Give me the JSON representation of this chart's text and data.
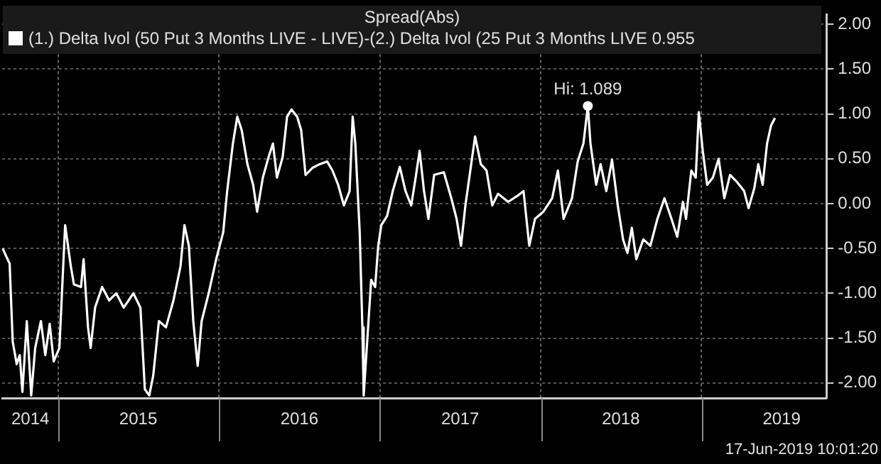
{
  "chart_data": {
    "type": "line",
    "title": "Spread(Abs)",
    "x": [
      "2014-08-28",
      "2014-09-13",
      "2014-09-20",
      "2014-09-29",
      "2014-10-06",
      "2014-10-12",
      "2014-10-22",
      "2014-11-01",
      "2014-11-10",
      "2014-11-23",
      "2014-12-03",
      "2014-12-13",
      "2014-12-22",
      "2015-01-04",
      "2015-01-17",
      "2015-01-30",
      "2015-02-06",
      "2015-02-22",
      "2015-02-28",
      "2015-03-10",
      "2015-03-16",
      "2015-03-26",
      "2015-04-11",
      "2015-04-27",
      "2015-05-13",
      "2015-05-30",
      "2015-06-21",
      "2015-07-07",
      "2015-07-17",
      "2015-07-27",
      "2015-08-05",
      "2015-08-18",
      "2015-09-03",
      "2015-09-20",
      "2015-10-06",
      "2015-10-15",
      "2015-10-25",
      "2015-11-04",
      "2015-11-14",
      "2015-11-23",
      "2015-12-09",
      "2015-12-26",
      "2016-01-11",
      "2016-01-20",
      "2016-02-02",
      "2016-02-12",
      "2016-02-22",
      "2016-03-06",
      "2016-03-19",
      "2016-03-28",
      "2016-04-10",
      "2016-04-23",
      "2016-05-03",
      "2016-05-12",
      "2016-05-25",
      "2016-06-04",
      "2016-06-14",
      "2016-06-27",
      "2016-07-06",
      "2016-07-16",
      "2016-08-01",
      "2016-08-17",
      "2016-09-03",
      "2016-09-15",
      "2016-09-28",
      "2016-10-11",
      "2016-10-24",
      "2016-10-31",
      "2016-11-06",
      "2016-11-16",
      "2016-11-22",
      "2016-11-25",
      "2016-12-02",
      "2016-12-12",
      "2016-12-21",
      "2016-12-28",
      "2017-01-04",
      "2017-01-17",
      "2017-01-30",
      "2017-02-15",
      "2017-02-28",
      "2017-03-13",
      "2017-03-23",
      "2017-04-01",
      "2017-04-11",
      "2017-04-21",
      "2017-05-04",
      "2017-05-26",
      "2017-06-12",
      "2017-06-24",
      "2017-07-04",
      "2017-07-14",
      "2017-08-05",
      "2017-08-18",
      "2017-08-31",
      "2017-09-13",
      "2017-09-26",
      "2017-10-19",
      "2017-11-10",
      "2017-11-23",
      "2017-12-06",
      "2017-12-19",
      "2018-01-07",
      "2018-01-27",
      "2018-02-09",
      "2018-02-22",
      "2018-03-13",
      "2018-03-26",
      "2018-04-08",
      "2018-04-18",
      "2018-04-24",
      "2018-05-07",
      "2018-05-17",
      "2018-05-30",
      "2018-06-12",
      "2018-06-25",
      "2018-07-07",
      "2018-07-17",
      "2018-07-27",
      "2018-08-06",
      "2018-08-22",
      "2018-09-07",
      "2018-09-23",
      "2018-10-09",
      "2018-10-25",
      "2018-11-07",
      "2018-11-20",
      "2018-11-27",
      "2018-12-09",
      "2018-12-19",
      "2018-12-26",
      "2019-01-04",
      "2019-01-14",
      "2019-01-27",
      "2019-02-09",
      "2019-02-22",
      "2019-03-07",
      "2019-03-23",
      "2019-04-08",
      "2019-04-18",
      "2019-05-01",
      "2019-05-10",
      "2019-05-20",
      "2019-05-30",
      "2019-06-08",
      "2019-06-17"
    ],
    "series": [
      {
        "name": "(1.) Delta Ivol (50 Put 3 Months LIVE - LIVE)-(2.) Delta Ivol (25 Put 3 Months LIVE 0.955",
        "color": "#ffffff",
        "values": [
          -0.5,
          -0.67,
          -1.54,
          -1.79,
          -1.69,
          -2.1,
          -1.31,
          -2.14,
          -1.61,
          -1.31,
          -1.69,
          -1.34,
          -1.76,
          -1.61,
          -0.24,
          -0.7,
          -0.9,
          -0.93,
          -0.62,
          -1.38,
          -1.61,
          -1.16,
          -0.93,
          -1.08,
          -1.0,
          -1.16,
          -1.0,
          -1.16,
          -2.07,
          -2.14,
          -1.92,
          -1.31,
          -1.38,
          -1.08,
          -0.7,
          -0.24,
          -0.47,
          -1.31,
          -1.81,
          -1.31,
          -1.0,
          -0.62,
          -0.32,
          0.14,
          0.67,
          0.97,
          0.82,
          0.44,
          0.21,
          -0.09,
          0.29,
          0.52,
          0.67,
          0.29,
          0.52,
          0.97,
          1.05,
          0.97,
          0.82,
          0.32,
          0.4,
          0.44,
          0.47,
          0.37,
          0.21,
          -0.02,
          0.14,
          0.97,
          0.67,
          -0.32,
          -1.38,
          -2.14,
          -1.61,
          -0.85,
          -0.93,
          -0.47,
          -0.24,
          -0.14,
          0.14,
          0.41,
          0.14,
          -0.02,
          0.29,
          0.59,
          0.14,
          -0.17,
          0.32,
          0.35,
          0.06,
          -0.17,
          -0.47,
          -0.02,
          0.75,
          0.44,
          0.37,
          -0.02,
          0.11,
          0.02,
          0.09,
          0.14,
          -0.47,
          -0.17,
          -0.09,
          0.06,
          0.37,
          -0.17,
          0.06,
          0.47,
          0.67,
          1.089,
          0.67,
          0.21,
          0.44,
          0.14,
          0.49,
          -0.02,
          -0.4,
          -0.55,
          -0.27,
          -0.62,
          -0.4,
          -0.47,
          -0.17,
          0.06,
          -0.17,
          -0.37,
          0.02,
          -0.17,
          0.37,
          0.29,
          1.02,
          0.59,
          0.21,
          0.29,
          0.5,
          0.06,
          0.32,
          0.24,
          0.14,
          -0.05,
          0.17,
          0.44,
          0.21,
          0.67,
          0.87,
          0.955
        ]
      }
    ],
    "xlim": [
      "2014-08-27",
      "2019-10-12"
    ],
    "xticks": [
      {
        "value": "2014-10-30",
        "label": "2014"
      },
      {
        "value": "2015-01-01",
        "label": null
      },
      {
        "value": "2015-07-02",
        "label": "2015"
      },
      {
        "value": "2016-01-01",
        "label": null
      },
      {
        "value": "2016-07-02",
        "label": "2016"
      },
      {
        "value": "2017-01-01",
        "label": null
      },
      {
        "value": "2017-07-02",
        "label": "2017"
      },
      {
        "value": "2018-01-01",
        "label": null
      },
      {
        "value": "2018-07-02",
        "label": "2018"
      },
      {
        "value": "2019-01-01",
        "label": null
      },
      {
        "value": "2019-07-02",
        "label": "2019"
      }
    ],
    "ylim": [
      -2.17,
      2.11
    ],
    "yticks": [
      {
        "value": 2,
        "label": "2.00"
      },
      {
        "value": 1.5,
        "label": "1.50"
      },
      {
        "value": 1,
        "label": "1.00"
      },
      {
        "value": 0.5,
        "label": "0.50"
      },
      {
        "value": 0,
        "label": "0.00"
      },
      {
        "value": -0.5,
        "label": "-0.50"
      },
      {
        "value": -1,
        "label": "-1.00"
      },
      {
        "value": -1.5,
        "label": "-1.50"
      },
      {
        "value": -2,
        "label": "-2.00"
      }
    ],
    "grid": true,
    "legend": "top",
    "marker": "none",
    "line_style": "solid",
    "annotations": [
      {
        "text": "Hi: 1.089",
        "x": "2018-04-18",
        "y": 1.089
      },
      "17-Jun-2019 10:01:20"
    ]
  }
}
